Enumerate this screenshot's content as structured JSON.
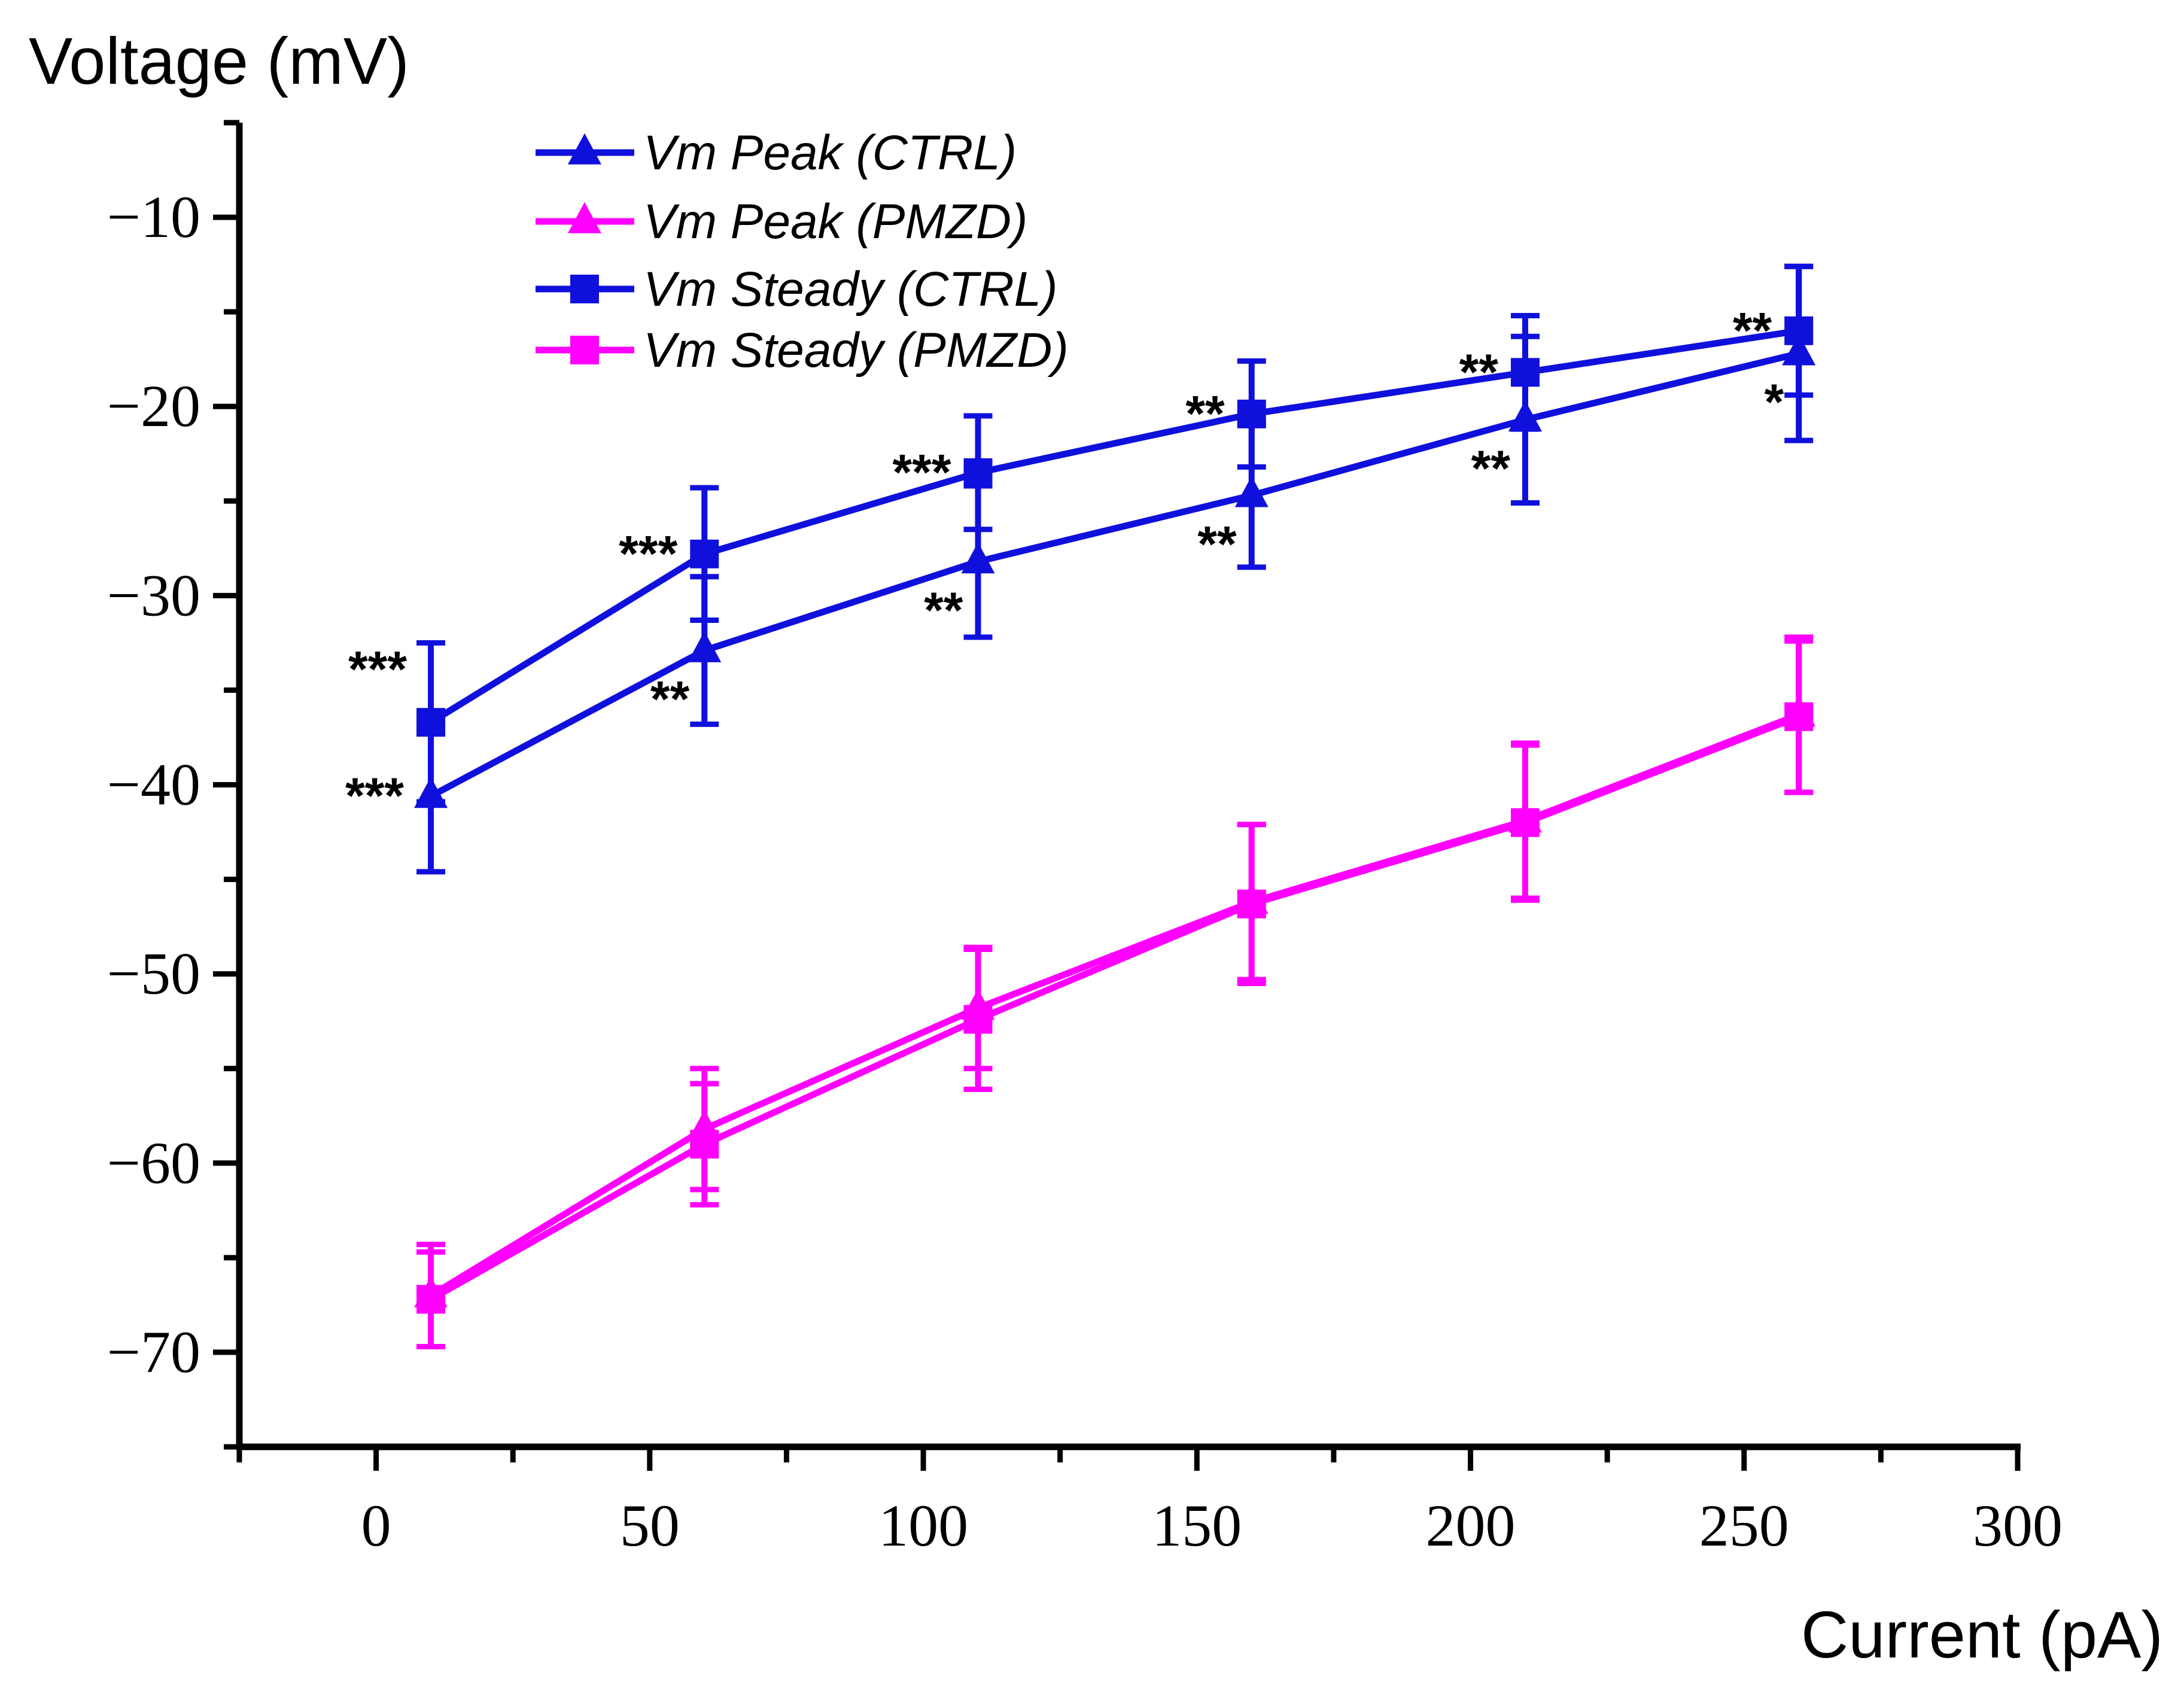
{
  "chart_data": {
    "type": "line",
    "xlabel": "Current (pA)",
    "ylabel": "Voltage (mV)",
    "xlim": [
      -25,
      300
    ],
    "ylim": [
      -75,
      -5
    ],
    "xticks": [
      0,
      50,
      100,
      150,
      200,
      250,
      300
    ],
    "yticks": [
      -10,
      -20,
      -30,
      -40,
      -50,
      -60,
      -70
    ],
    "ytick_labels": [
      "−10",
      "−20",
      "−30",
      "−40",
      "−50",
      "−60",
      "−70"
    ],
    "legend_position": "top-left",
    "grid": false,
    "x": [
      10,
      60,
      110,
      160,
      210,
      260
    ],
    "series": [
      {
        "name": "Vm Peak (CTRL)",
        "marker": "triangle",
        "color": "#1010dd",
        "values": [
          -40.6,
          -32.9,
          -28.2,
          -24.7,
          -20.7,
          -17.2
        ],
        "errors": [
          4.0,
          3.9,
          4.0,
          3.8,
          4.4,
          4.6
        ]
      },
      {
        "name": "Vm Peak (PMZD)",
        "marker": "triangle",
        "color": "#ff00ff",
        "values": [
          -67.0,
          -58.2,
          -51.8,
          -46.2,
          -41.9,
          -36.3
        ],
        "errors": [
          2.7,
          3.2,
          3.2,
          4.1,
          4.1,
          4.1
        ]
      },
      {
        "name": "Vm Steady (CTRL)",
        "marker": "square",
        "color": "#1010dd",
        "values": [
          -36.7,
          -27.8,
          -23.5,
          -20.4,
          -18.2,
          -16.0
        ],
        "errors": [
          4.2,
          3.5,
          3.0,
          2.8,
          3.0,
          3.4
        ]
      },
      {
        "name": "Vm Steady (PMZD)",
        "marker": "square",
        "color": "#ff00ff",
        "values": [
          -67.2,
          -59.0,
          -52.4,
          -46.3,
          -42.0,
          -36.4
        ],
        "errors": [
          2.5,
          3.2,
          3.7,
          4.2,
          4.1,
          4.0
        ]
      }
    ],
    "annotations": [
      {
        "series": "Vm Steady (CTRL)",
        "index": 0,
        "text": "***",
        "placement": "upper-left"
      },
      {
        "series": "Vm Peak (CTRL)",
        "index": 0,
        "text": "***",
        "placement": "left"
      },
      {
        "series": "Vm Steady (CTRL)",
        "index": 1,
        "text": "***",
        "placement": "left"
      },
      {
        "series": "Vm Peak (CTRL)",
        "index": 1,
        "text": "**",
        "placement": "lower-left"
      },
      {
        "series": "Vm Steady (CTRL)",
        "index": 2,
        "text": "***",
        "placement": "left"
      },
      {
        "series": "Vm Peak (CTRL)",
        "index": 2,
        "text": "**",
        "placement": "lower-left"
      },
      {
        "series": "Vm Steady (CTRL)",
        "index": 3,
        "text": "**",
        "placement": "left"
      },
      {
        "series": "Vm Peak (CTRL)",
        "index": 3,
        "text": "**",
        "placement": "lower-left"
      },
      {
        "series": "Vm Steady (CTRL)",
        "index": 4,
        "text": "**",
        "placement": "left"
      },
      {
        "series": "Vm Peak (CTRL)",
        "index": 4,
        "text": "**",
        "placement": "lower-left"
      },
      {
        "series": "Vm Steady (CTRL)",
        "index": 5,
        "text": "**",
        "placement": "left"
      },
      {
        "series": "Vm Peak (CTRL)",
        "index": 5,
        "text": "*",
        "placement": "lower-left"
      }
    ]
  }
}
